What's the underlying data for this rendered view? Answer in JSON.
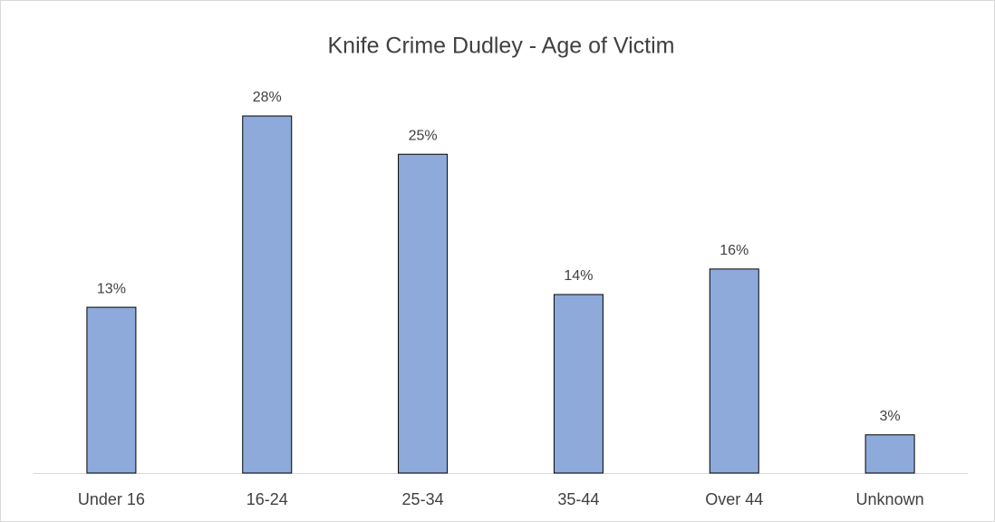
{
  "chart_data": {
    "type": "bar",
    "title": "Knife Crime Dudley - Age of Victim",
    "categories": [
      "Under 16",
      "16-24",
      "25-34",
      "35-44",
      "Over 44",
      "Unknown"
    ],
    "values": [
      13,
      28,
      25,
      14,
      16,
      3
    ],
    "value_labels": [
      "13%",
      "28%",
      "25%",
      "14%",
      "16%",
      "3%"
    ],
    "color": "#8eaadb"
  }
}
